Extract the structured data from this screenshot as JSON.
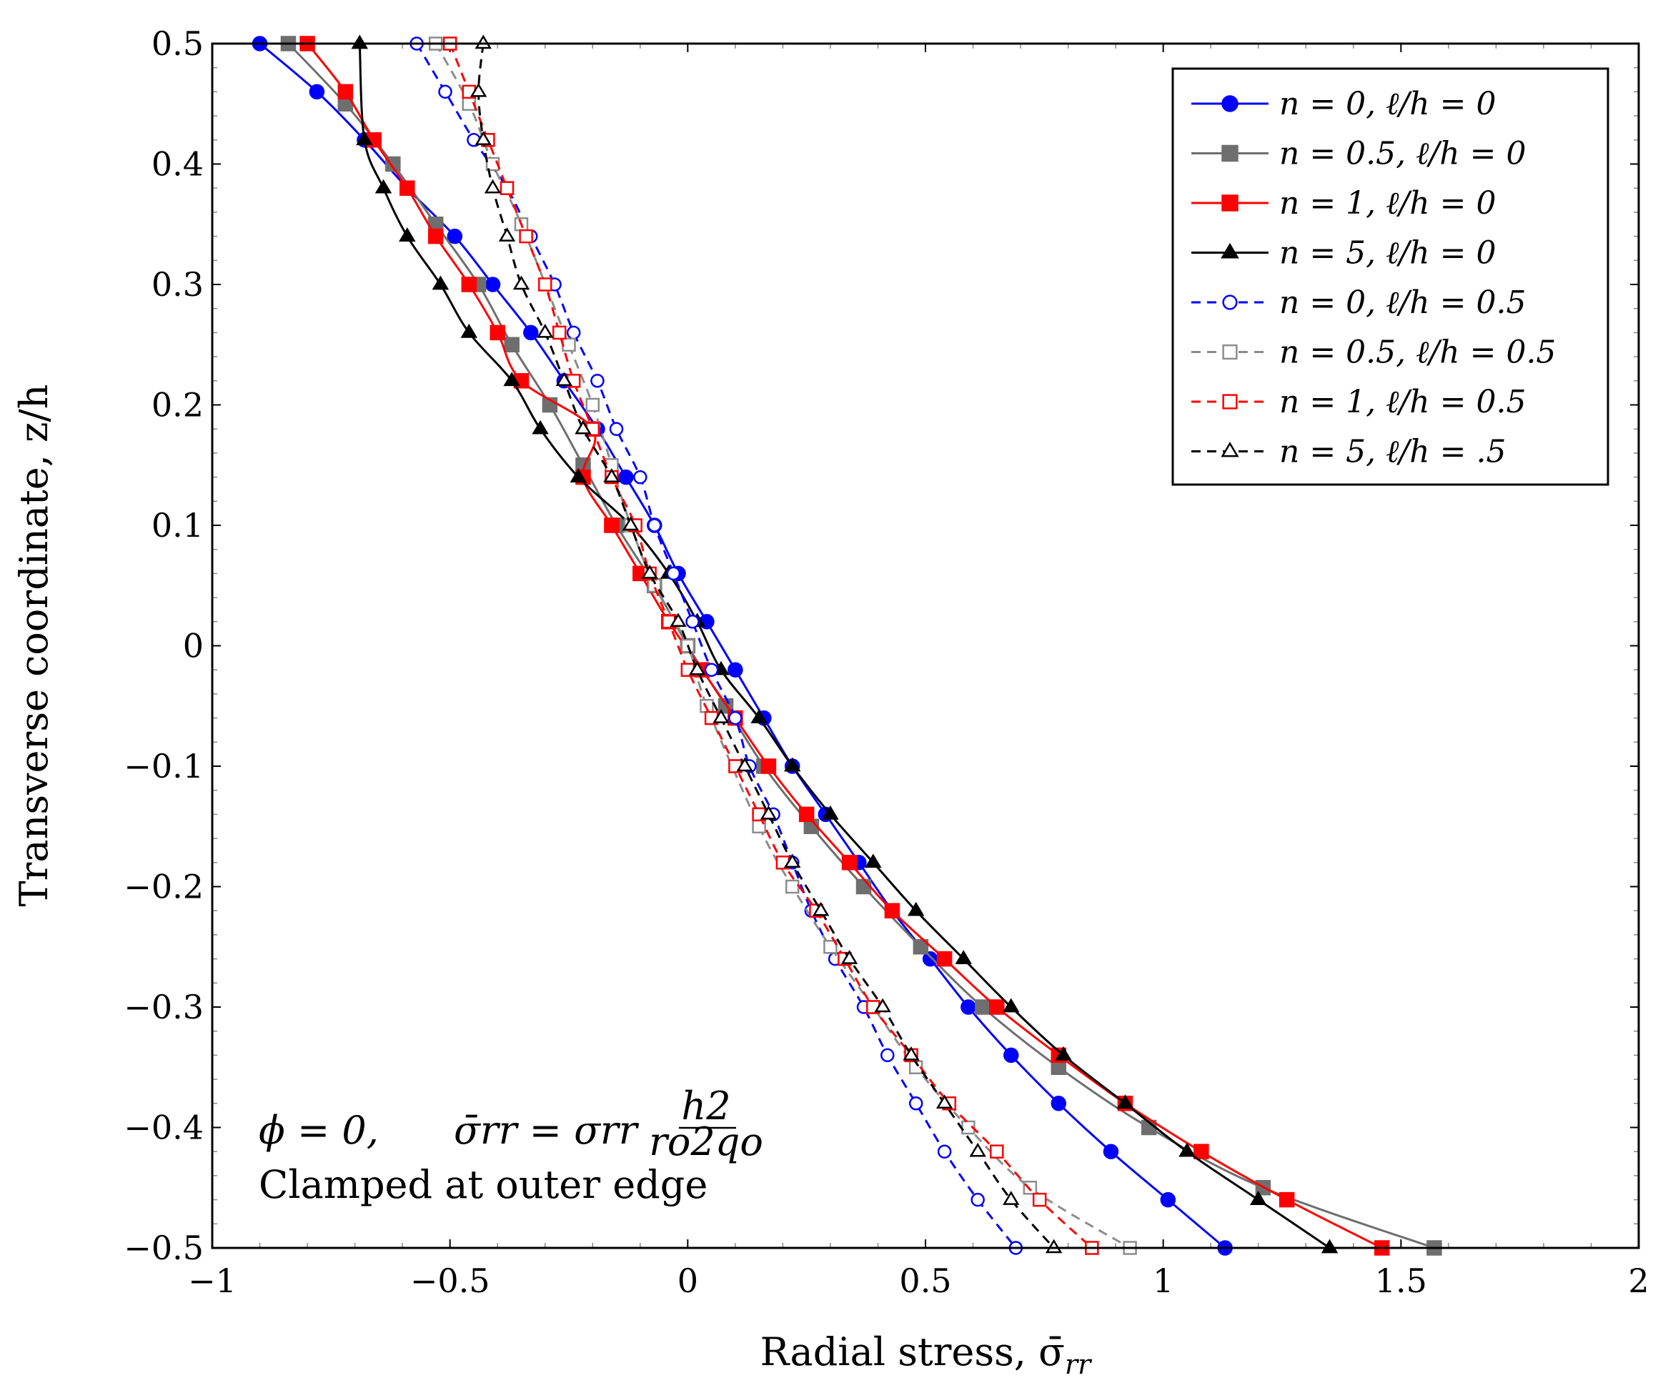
{
  "chart_data": {
    "type": "line",
    "xlabel": "Radial stress, σ̄",
    "xlabel_sub": "rr",
    "ylabel": "Transverse coordinate, z/h",
    "xlim": [
      -1,
      2
    ],
    "ylim": [
      -0.5,
      0.5
    ],
    "xticks": [
      -1,
      -0.5,
      0,
      0.5,
      1,
      1.5,
      2
    ],
    "xtick_labels": [
      "−1",
      "−0.5",
      "0",
      "0.5",
      "1",
      "1.5",
      "2"
    ],
    "yticks": [
      0.5,
      0.4,
      0.3,
      0.2,
      0.1,
      0,
      -0.1,
      -0.2,
      -0.3,
      -0.4,
      -0.5
    ],
    "ytick_labels": [
      "0.5",
      "0.4",
      "0.3",
      "0.2",
      "0.1",
      "0",
      "−0.1",
      "−0.2",
      "−0.3",
      "−0.4",
      "−0.5"
    ],
    "grid": false,
    "legend_position": "top-right",
    "annotation": {
      "line1_left": "ϕ = 0,",
      "line1_formula_left": "σ̄rr = σrr",
      "fraction_num": "h2",
      "fraction_den": "ro2qo",
      "line2": "Clamped at outer edge"
    },
    "series": [
      {
        "name": "n = 0,    ℓ/h = 0",
        "color": "#0000ff",
        "dash": "solid",
        "marker": "circle-filled",
        "points": [
          [
            -0.9,
            0.5
          ],
          [
            -0.78,
            0.46
          ],
          [
            -0.68,
            0.42
          ],
          [
            -0.59,
            0.38
          ],
          [
            -0.49,
            0.34
          ],
          [
            -0.41,
            0.3
          ],
          [
            -0.33,
            0.26
          ],
          [
            -0.26,
            0.22
          ],
          [
            -0.19,
            0.18
          ],
          [
            -0.13,
            0.14
          ],
          [
            -0.07,
            0.1
          ],
          [
            -0.02,
            0.06
          ],
          [
            0.04,
            0.02
          ],
          [
            0.1,
            -0.02
          ],
          [
            0.16,
            -0.06
          ],
          [
            0.22,
            -0.1
          ],
          [
            0.29,
            -0.14
          ],
          [
            0.36,
            -0.18
          ],
          [
            0.43,
            -0.22
          ],
          [
            0.51,
            -0.26
          ],
          [
            0.59,
            -0.3
          ],
          [
            0.68,
            -0.34
          ],
          [
            0.78,
            -0.38
          ],
          [
            0.89,
            -0.42
          ],
          [
            1.01,
            -0.46
          ],
          [
            1.13,
            -0.5
          ]
        ]
      },
      {
        "name": "n = 0.5, ℓ/h = 0",
        "color": "#6e6e6e",
        "dash": "solid",
        "marker": "square-filled",
        "points": [
          [
            -0.84,
            0.5
          ],
          [
            -0.72,
            0.45
          ],
          [
            -0.62,
            0.4
          ],
          [
            -0.53,
            0.35
          ],
          [
            -0.44,
            0.3
          ],
          [
            -0.37,
            0.25
          ],
          [
            -0.29,
            0.2
          ],
          [
            -0.22,
            0.15
          ],
          [
            -0.15,
            0.1
          ],
          [
            -0.07,
            0.05
          ],
          [
            0.0,
            0.0
          ],
          [
            0.08,
            -0.05
          ],
          [
            0.16,
            -0.1
          ],
          [
            0.26,
            -0.15
          ],
          [
            0.37,
            -0.2
          ],
          [
            0.49,
            -0.25
          ],
          [
            0.62,
            -0.3
          ],
          [
            0.78,
            -0.35
          ],
          [
            0.97,
            -0.4
          ],
          [
            1.21,
            -0.45
          ],
          [
            1.57,
            -0.5
          ]
        ]
      },
      {
        "name": "n = 1,    ℓ/h = 0",
        "color": "#ff0000",
        "dash": "solid",
        "marker": "square-filled",
        "points": [
          [
            -0.8,
            0.5
          ],
          [
            -0.72,
            0.46
          ],
          [
            -0.66,
            0.42
          ],
          [
            -0.59,
            0.38
          ],
          [
            -0.53,
            0.34
          ],
          [
            -0.46,
            0.3
          ],
          [
            -0.4,
            0.26
          ],
          [
            -0.35,
            0.22
          ],
          [
            -0.2,
            0.18
          ],
          [
            -0.22,
            0.14
          ],
          [
            -0.16,
            0.1
          ],
          [
            -0.1,
            0.06
          ],
          [
            -0.04,
            0.02
          ],
          [
            0.03,
            -0.02
          ],
          [
            0.1,
            -0.06
          ],
          [
            0.17,
            -0.1
          ],
          [
            0.25,
            -0.14
          ],
          [
            0.34,
            -0.18
          ],
          [
            0.43,
            -0.22
          ],
          [
            0.54,
            -0.26
          ],
          [
            0.65,
            -0.3
          ],
          [
            0.78,
            -0.34
          ],
          [
            0.92,
            -0.38
          ],
          [
            1.08,
            -0.42
          ],
          [
            1.26,
            -0.46
          ],
          [
            1.46,
            -0.5
          ]
        ]
      },
      {
        "name": "n = 5,    ℓ/h = 0",
        "color": "#000000",
        "dash": "solid",
        "marker": "triangle-filled",
        "points": [
          [
            -0.69,
            0.5
          ],
          [
            -0.68,
            0.42
          ],
          [
            -0.64,
            0.38
          ],
          [
            -0.59,
            0.34
          ],
          [
            -0.52,
            0.3
          ],
          [
            -0.46,
            0.26
          ],
          [
            -0.37,
            0.22
          ],
          [
            -0.31,
            0.18
          ],
          [
            -0.23,
            0.14
          ],
          [
            -0.12,
            0.1
          ],
          [
            -0.04,
            0.06
          ],
          [
            0.02,
            0.02
          ],
          [
            0.07,
            -0.02
          ],
          [
            0.15,
            -0.06
          ],
          [
            0.22,
            -0.1
          ],
          [
            0.3,
            -0.14
          ],
          [
            0.39,
            -0.18
          ],
          [
            0.48,
            -0.22
          ],
          [
            0.58,
            -0.26
          ],
          [
            0.68,
            -0.3
          ],
          [
            0.79,
            -0.34
          ],
          [
            0.92,
            -0.38
          ],
          [
            1.05,
            -0.42
          ],
          [
            1.2,
            -0.46
          ],
          [
            1.35,
            -0.5
          ]
        ]
      },
      {
        "name": "n = 0,    ℓ/h = 0.5",
        "color": "#0000ff",
        "dash": "dashed",
        "marker": "circle-open",
        "points": [
          [
            -0.57,
            0.5
          ],
          [
            -0.51,
            0.46
          ],
          [
            -0.45,
            0.42
          ],
          [
            -0.38,
            0.38
          ],
          [
            -0.33,
            0.34
          ],
          [
            -0.28,
            0.3
          ],
          [
            -0.24,
            0.26
          ],
          [
            -0.19,
            0.22
          ],
          [
            -0.15,
            0.18
          ],
          [
            -0.1,
            0.14
          ],
          [
            -0.07,
            0.1
          ],
          [
            -0.03,
            0.06
          ],
          [
            0.01,
            0.02
          ],
          [
            0.05,
            -0.02
          ],
          [
            0.1,
            -0.06
          ],
          [
            0.13,
            -0.1
          ],
          [
            0.18,
            -0.14
          ],
          [
            0.22,
            -0.18
          ],
          [
            0.26,
            -0.22
          ],
          [
            0.31,
            -0.26
          ],
          [
            0.37,
            -0.3
          ],
          [
            0.42,
            -0.34
          ],
          [
            0.48,
            -0.38
          ],
          [
            0.54,
            -0.42
          ],
          [
            0.61,
            -0.46
          ],
          [
            0.69,
            -0.5
          ]
        ]
      },
      {
        "name": "n = 0.5, ℓ/h = 0.5",
        "color": "#8c8c8c",
        "dash": "dashed",
        "marker": "square-open",
        "points": [
          [
            -0.53,
            0.5
          ],
          [
            -0.46,
            0.45
          ],
          [
            -0.41,
            0.4
          ],
          [
            -0.35,
            0.35
          ],
          [
            -0.25,
            0.25
          ],
          [
            -0.2,
            0.2
          ],
          [
            -0.16,
            0.15
          ],
          [
            -0.12,
            0.1
          ],
          [
            -0.07,
            0.05
          ],
          [
            0.0,
            0.0
          ],
          [
            0.04,
            -0.05
          ],
          [
            0.15,
            -0.15
          ],
          [
            0.22,
            -0.2
          ],
          [
            0.3,
            -0.25
          ],
          [
            0.39,
            -0.3
          ],
          [
            0.48,
            -0.35
          ],
          [
            0.59,
            -0.4
          ],
          [
            0.72,
            -0.45
          ],
          [
            0.93,
            -0.5
          ]
        ]
      },
      {
        "name": "n = 1,    ℓ/h = 0.5",
        "color": "#ff0000",
        "dash": "dashed",
        "marker": "square-open",
        "points": [
          [
            -0.5,
            0.5
          ],
          [
            -0.46,
            0.46
          ],
          [
            -0.42,
            0.42
          ],
          [
            -0.38,
            0.38
          ],
          [
            -0.34,
            0.34
          ],
          [
            -0.3,
            0.3
          ],
          [
            -0.27,
            0.26
          ],
          [
            -0.24,
            0.22
          ],
          [
            -0.2,
            0.18
          ],
          [
            -0.16,
            0.14
          ],
          [
            -0.11,
            0.1
          ],
          [
            -0.08,
            0.06
          ],
          [
            -0.04,
            0.02
          ],
          [
            0.0,
            -0.02
          ],
          [
            0.05,
            -0.06
          ],
          [
            0.1,
            -0.1
          ],
          [
            0.15,
            -0.14
          ],
          [
            0.2,
            -0.18
          ],
          [
            0.27,
            -0.22
          ],
          [
            0.33,
            -0.26
          ],
          [
            0.39,
            -0.3
          ],
          [
            0.47,
            -0.34
          ],
          [
            0.55,
            -0.38
          ],
          [
            0.65,
            -0.42
          ],
          [
            0.74,
            -0.46
          ],
          [
            0.85,
            -0.5
          ]
        ]
      },
      {
        "name": "n = 5,    ℓ/h = .5",
        "color": "#000000",
        "dash": "dashed",
        "marker": "triangle-open",
        "points": [
          [
            -0.43,
            0.5
          ],
          [
            -0.44,
            0.46
          ],
          [
            -0.43,
            0.42
          ],
          [
            -0.41,
            0.38
          ],
          [
            -0.38,
            0.34
          ],
          [
            -0.35,
            0.3
          ],
          [
            -0.3,
            0.26
          ],
          [
            -0.26,
            0.22
          ],
          [
            -0.22,
            0.18
          ],
          [
            -0.16,
            0.14
          ],
          [
            -0.12,
            0.1
          ],
          [
            -0.08,
            0.06
          ],
          [
            -0.02,
            0.02
          ],
          [
            0.02,
            -0.02
          ],
          [
            0.07,
            -0.06
          ],
          [
            0.12,
            -0.1
          ],
          [
            0.17,
            -0.14
          ],
          [
            0.22,
            -0.18
          ],
          [
            0.28,
            -0.22
          ],
          [
            0.34,
            -0.26
          ],
          [
            0.41,
            -0.3
          ],
          [
            0.47,
            -0.34
          ],
          [
            0.54,
            -0.38
          ],
          [
            0.61,
            -0.42
          ],
          [
            0.68,
            -0.46
          ],
          [
            0.77,
            -0.5
          ]
        ]
      }
    ]
  }
}
